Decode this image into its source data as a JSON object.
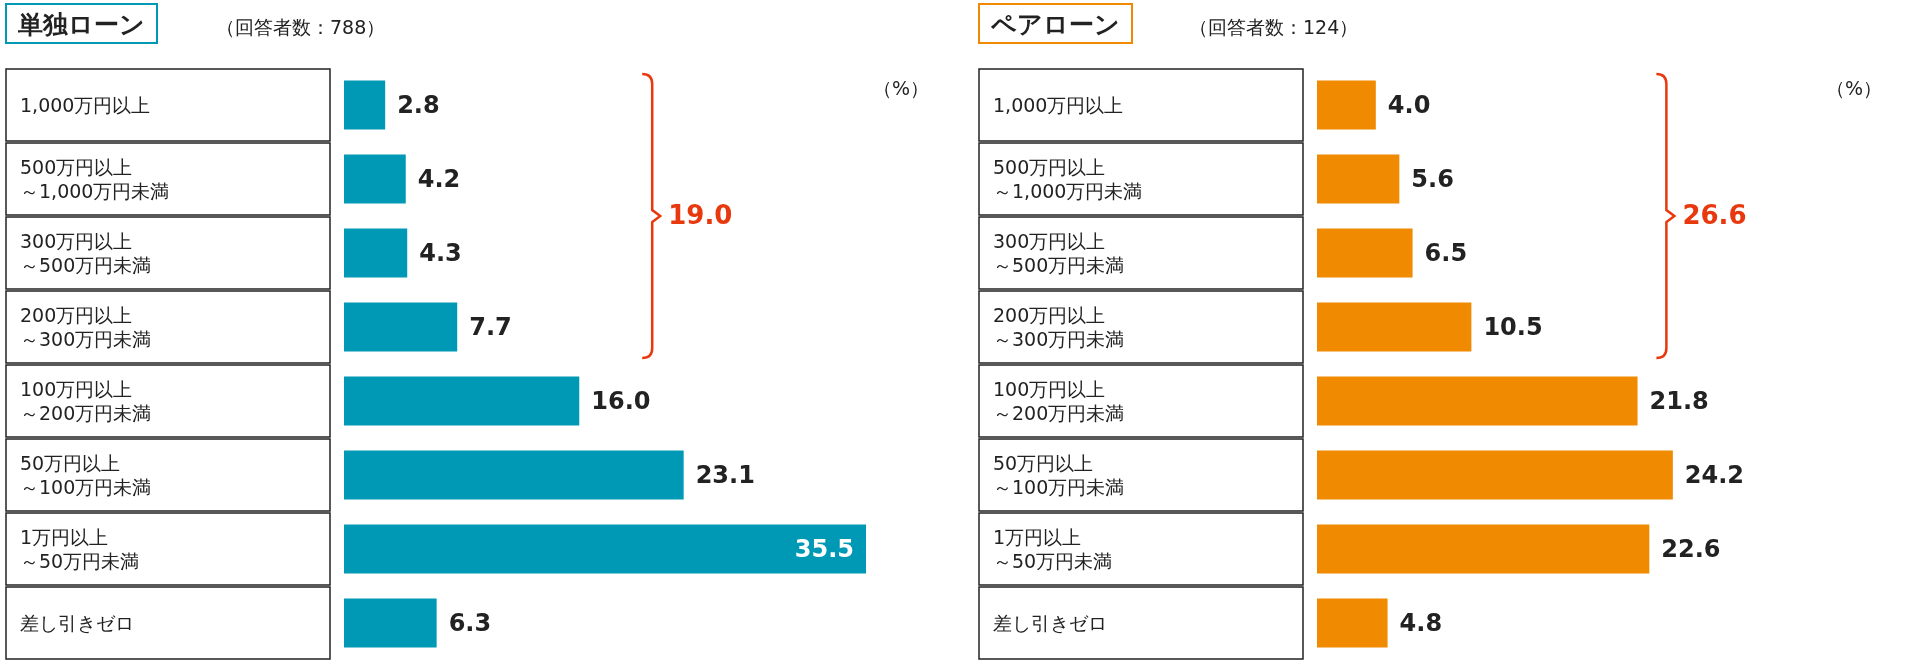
{
  "chart_data": [
    {
      "type": "bar",
      "orientation": "horizontal",
      "title": "単独ローン",
      "subtitle": "（回答者数：788）",
      "categories": [
        "1,000万円以上",
        "500万円以上～1,000万円未満",
        "300万円以上～500万円未満",
        "200万円以上～300万円未満",
        "100万円以上～200万円未満",
        "50万円以上～100万円未満",
        "1万円以上～50万円未満",
        "差し引きゼロ"
      ],
      "series": [
        {
          "color": "#0099b5",
          "values": [
            2.8,
            4.2,
            4.3,
            7.7,
            16.0,
            23.1,
            35.5,
            6.3
          ],
          "value_labels": [
            "2.8",
            "4.2",
            "4.3",
            "7.7",
            "16.0",
            "23.1",
            "35.5",
            "6.3"
          ]
        }
      ],
      "annotations": [
        "19.0",
        "（%）"
      ]
    },
    {
      "type": "bar",
      "orientation": "horizontal",
      "title": "ペアローン",
      "subtitle": "（回答者数：124）",
      "categories": [
        "1,000万円以上",
        "500万円以上～1,000万円未満",
        "300万円以上～500万円未満",
        "200万円以上～300万円未満",
        "100万円以上～200万円未満",
        "50万円以上～100万円未満",
        "1万円以上～50万円未満",
        "差し引きゼロ"
      ],
      "series": [
        {
          "color": "#f08a00",
          "values": [
            4.0,
            5.6,
            6.5,
            10.5,
            21.8,
            24.2,
            22.6,
            4.8
          ],
          "value_labels": [
            "4.0",
            "5.6",
            "6.5",
            "10.5",
            "21.8",
            "24.2",
            "22.6",
            "4.8"
          ]
        }
      ],
      "annotations": [
        "26.6",
        "（%）"
      ]
    }
  ]
}
